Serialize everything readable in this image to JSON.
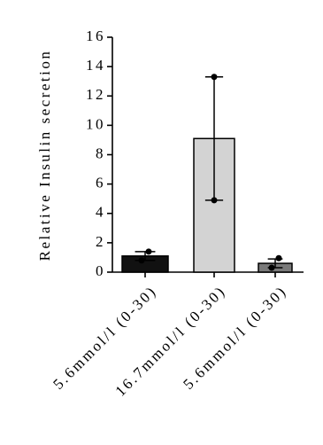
{
  "chart_data": {
    "type": "bar",
    "y_label": "Relative Insulin secretion",
    "categories": [
      "5.6mmol/l (0-30)",
      "16.7mmol/l (0-30)",
      "5.6mmol/l (0-30)"
    ],
    "values": [
      1.1,
      9.1,
      0.6
    ],
    "errors": [
      0.3,
      4.2,
      0.3
    ],
    "points": [
      [
        1.4,
        0.8
      ],
      [
        13.3,
        4.9
      ],
      [
        0.95,
        0.3
      ]
    ],
    "colors": [
      "#111111",
      "#d3d3d3",
      "#7a7a7a"
    ],
    "ylim": [
      0,
      16
    ],
    "yticks": [
      0,
      2,
      4,
      6,
      8,
      10,
      12,
      14,
      16
    ]
  }
}
